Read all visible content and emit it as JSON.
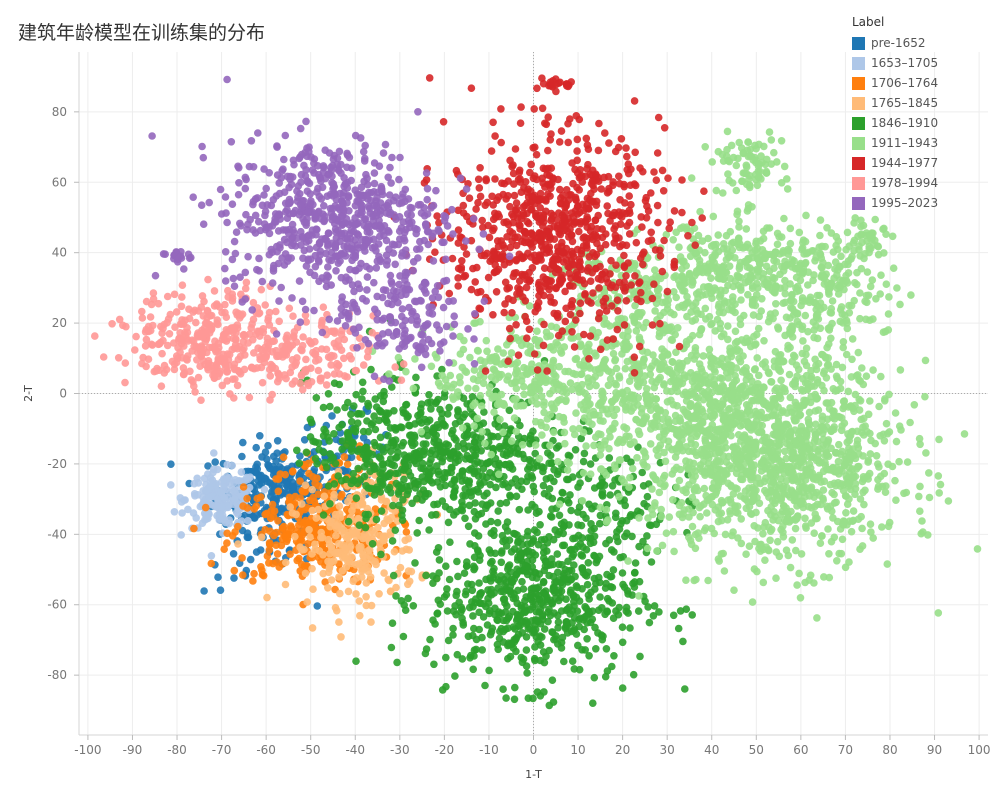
{
  "chart_data": {
    "type": "scatter",
    "title": "建筑年龄模型在训练集的分布",
    "xlabel": "1-T",
    "ylabel": "2-T",
    "xlim": [
      -102,
      102
    ],
    "ylim": [
      -97,
      97
    ],
    "xticks": [
      -100,
      -90,
      -80,
      -70,
      -60,
      -50,
      -40,
      -30,
      -20,
      -10,
      0,
      10,
      20,
      30,
      40,
      50,
      60,
      70,
      80,
      90,
      100
    ],
    "yticks": [
      -80,
      -60,
      -40,
      -20,
      0,
      20,
      40,
      60,
      80
    ],
    "grid": true,
    "zero_lines": true,
    "legend": {
      "title": "Label",
      "placement": "top-right"
    },
    "series": [
      {
        "name": "pre-1652",
        "color": "#1f77b4",
        "clusters": [
          {
            "center": [
              -57,
              -27
            ],
            "spread": [
              7,
              6
            ],
            "count": 260
          },
          {
            "center": [
              -42,
              -16
            ],
            "spread": [
              5,
              5
            ],
            "count": 50
          },
          {
            "center": [
              -62,
              -45
            ],
            "spread": [
              6,
              6
            ],
            "count": 40
          }
        ]
      },
      {
        "name": "1653–1705",
        "color": "#aec7e8",
        "clusters": [
          {
            "center": [
              -70,
              -30
            ],
            "spread": [
              4,
              4
            ],
            "count": 180
          }
        ]
      },
      {
        "name": "1706–1764",
        "color": "#ff7f0e",
        "clusters": [
          {
            "center": [
              -50,
              -40
            ],
            "spread": [
              9,
              7
            ],
            "count": 280
          },
          {
            "center": [
              -46,
              -25
            ],
            "spread": [
              5,
              5
            ],
            "count": 60
          }
        ]
      },
      {
        "name": "1765–1845",
        "color": "#ffbb78",
        "clusters": [
          {
            "center": [
              -40,
              -44
            ],
            "spread": [
              7,
              8
            ],
            "count": 220
          },
          {
            "center": [
              -35,
              -28
            ],
            "spread": [
              5,
              5
            ],
            "count": 60
          }
        ]
      },
      {
        "name": "1846–1910",
        "color": "#2ca02c",
        "clusters": [
          {
            "center": [
              0,
              -58
            ],
            "spread": [
              12,
              12
            ],
            "count": 650
          },
          {
            "center": [
              -15,
              -18
            ],
            "spread": [
              11,
              10
            ],
            "count": 420
          },
          {
            "center": [
              -35,
              -15
            ],
            "spread": [
              8,
              10
            ],
            "count": 250
          },
          {
            "center": [
              15,
              -30
            ],
            "spread": [
              8,
              8
            ],
            "count": 120
          }
        ]
      },
      {
        "name": "1911–1943",
        "color": "#98df8a",
        "clusters": [
          {
            "center": [
              55,
              -20
            ],
            "spread": [
              14,
              14
            ],
            "count": 1100
          },
          {
            "center": [
              35,
              0
            ],
            "spread": [
              18,
              13
            ],
            "count": 800
          },
          {
            "center": [
              0,
              5
            ],
            "spread": [
              12,
              8
            ],
            "count": 300
          },
          {
            "center": [
              45,
              35
            ],
            "spread": [
              10,
              7
            ],
            "count": 300
          },
          {
            "center": [
              65,
              30
            ],
            "spread": [
              8,
              8
            ],
            "count": 200
          },
          {
            "center": [
              48,
              65
            ],
            "spread": [
              4,
              4
            ],
            "count": 80
          },
          {
            "center": [
              75,
              44
            ],
            "spread": [
              3,
              3
            ],
            "count": 40
          },
          {
            "center": [
              20,
              30
            ],
            "spread": [
              8,
              6
            ],
            "count": 120
          }
        ]
      },
      {
        "name": "1944–1977",
        "color": "#d62728",
        "clusters": [
          {
            "center": [
              5,
              45
            ],
            "spread": [
              12,
              14
            ],
            "count": 780
          },
          {
            "center": [
              5,
              88
            ],
            "spread": [
              2,
              1
            ],
            "count": 20
          }
        ]
      },
      {
        "name": "1978–1994",
        "color": "#ff9896",
        "clusters": [
          {
            "center": [
              -72,
              15
            ],
            "spread": [
              9,
              7
            ],
            "count": 330
          },
          {
            "center": [
              -52,
              10
            ],
            "spread": [
              8,
              6
            ],
            "count": 150
          }
        ]
      },
      {
        "name": "1995–2023",
        "color": "#9467bd",
        "clusters": [
          {
            "center": [
              -45,
              50
            ],
            "spread": [
              12,
              11
            ],
            "count": 650
          },
          {
            "center": [
              -30,
              22
            ],
            "spread": [
              7,
              8
            ],
            "count": 150
          },
          {
            "center": [
              -80,
              40
            ],
            "spread": [
              2,
              2
            ],
            "count": 15
          }
        ]
      }
    ]
  }
}
